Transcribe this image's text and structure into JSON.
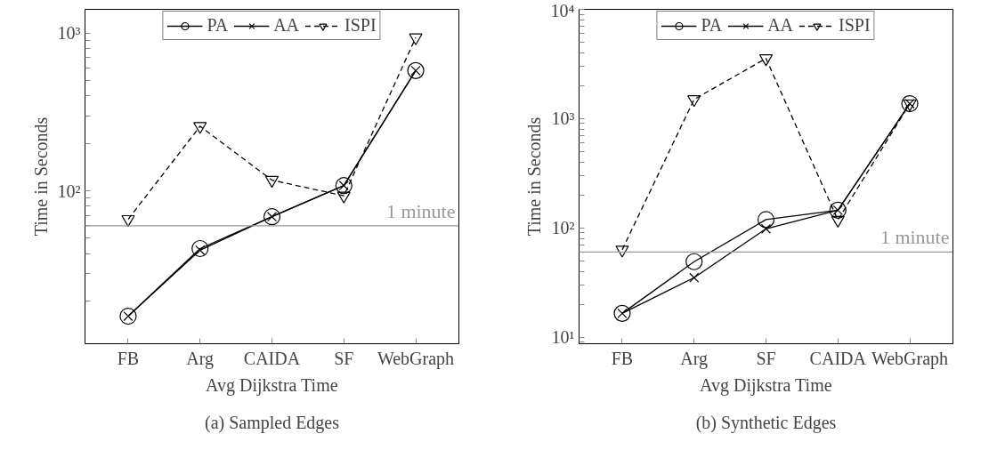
{
  "chart_data": [
    {
      "type": "line",
      "xlabel": "Avg Dijkstra Time",
      "ylabel": "Time in Seconds",
      "log": "y",
      "legend": "top",
      "grid": false,
      "categories": [
        "FB",
        "Arg",
        "CAIDA",
        "SF",
        "WebGraph"
      ],
      "ylim": [
        10.7,
        1420
      ],
      "yticks": [
        {
          "value": 20,
          "label": null
        },
        {
          "value": 30,
          "label": null
        },
        {
          "value": 40,
          "label": null
        },
        {
          "value": 50,
          "label": null
        },
        {
          "value": 60,
          "label": null
        },
        {
          "value": 70,
          "label": null
        },
        {
          "value": 80,
          "label": null
        },
        {
          "value": 90,
          "label": null
        },
        {
          "value": 100,
          "label": "10²"
        },
        {
          "value": 200,
          "label": null
        },
        {
          "value": 300,
          "label": null
        },
        {
          "value": 400,
          "label": null
        },
        {
          "value": 500,
          "label": null
        },
        {
          "value": 600,
          "label": null
        },
        {
          "value": 700,
          "label": null
        },
        {
          "value": 800,
          "label": null
        },
        {
          "value": 900,
          "label": null
        },
        {
          "value": 1000,
          "label": "10³"
        }
      ],
      "series": [
        {
          "name": "PA",
          "color": "#000000",
          "marker": "circle",
          "line_style": "solid",
          "values": [
            16,
            43,
            68.5,
            108,
            580
          ]
        },
        {
          "name": "AA",
          "color": "#000000",
          "marker": "cross",
          "line_style": "solid",
          "values": [
            16,
            42,
            68.5,
            108,
            580
          ]
        },
        {
          "name": "ISPI",
          "color": "#000000",
          "marker": "triangle",
          "line_style": "dashed",
          "values": [
            66,
            257,
            117,
            93,
            940
          ]
        }
      ],
      "ref_lines": [
        {
          "axis": "y",
          "value": 60,
          "label": "1 minute",
          "color": "#999999"
        }
      ],
      "annotations": [
        "(a) Sampled Edges"
      ]
    },
    {
      "type": "line",
      "xlabel": "Avg Dijkstra Time",
      "ylabel": "Time in Seconds",
      "log": "y",
      "legend": "top",
      "grid": false,
      "categories": [
        "FB",
        "Arg",
        "SF",
        "CAIDA",
        "WebGraph"
      ],
      "ylim": [
        8.7,
        10000
      ],
      "yticks": [
        {
          "value": 9,
          "label": null
        },
        {
          "value": 10,
          "label": "10¹"
        },
        {
          "value": 20,
          "label": null
        },
        {
          "value": 30,
          "label": null
        },
        {
          "value": 40,
          "label": null
        },
        {
          "value": 50,
          "label": null
        },
        {
          "value": 60,
          "label": null
        },
        {
          "value": 70,
          "label": null
        },
        {
          "value": 80,
          "label": null
        },
        {
          "value": 90,
          "label": null
        },
        {
          "value": 100,
          "label": "10²"
        },
        {
          "value": 200,
          "label": null
        },
        {
          "value": 300,
          "label": null
        },
        {
          "value": 400,
          "label": null
        },
        {
          "value": 500,
          "label": null
        },
        {
          "value": 600,
          "label": null
        },
        {
          "value": 700,
          "label": null
        },
        {
          "value": 800,
          "label": null
        },
        {
          "value": 900,
          "label": null
        },
        {
          "value": 1000,
          "label": "10³"
        },
        {
          "value": 2000,
          "label": null
        },
        {
          "value": 3000,
          "label": null
        },
        {
          "value": 4000,
          "label": null
        },
        {
          "value": 5000,
          "label": null
        },
        {
          "value": 6000,
          "label": null
        },
        {
          "value": 7000,
          "label": null
        },
        {
          "value": 8000,
          "label": null
        },
        {
          "value": 9000,
          "label": null
        },
        {
          "value": 10000,
          "label": "10⁴"
        }
      ],
      "series": [
        {
          "name": "PA",
          "color": "#000000",
          "marker": "circle",
          "line_style": "solid",
          "values": [
            16.5,
            49,
            119,
            145,
            1370
          ]
        },
        {
          "name": "AA",
          "color": "#000000",
          "marker": "cross",
          "line_style": "solid",
          "values": [
            16.5,
            35,
            98,
            145,
            1370
          ]
        },
        {
          "name": "ISPI",
          "color": "#000000",
          "marker": "triangle",
          "line_style": "dashed",
          "values": [
            63,
            1500,
            3550,
            118,
            1370
          ]
        }
      ],
      "ref_lines": [
        {
          "axis": "y",
          "value": 60,
          "label": "1 minute",
          "color": "#999999"
        }
      ],
      "annotations": [
        "(b) Synthetic Edges"
      ]
    }
  ]
}
